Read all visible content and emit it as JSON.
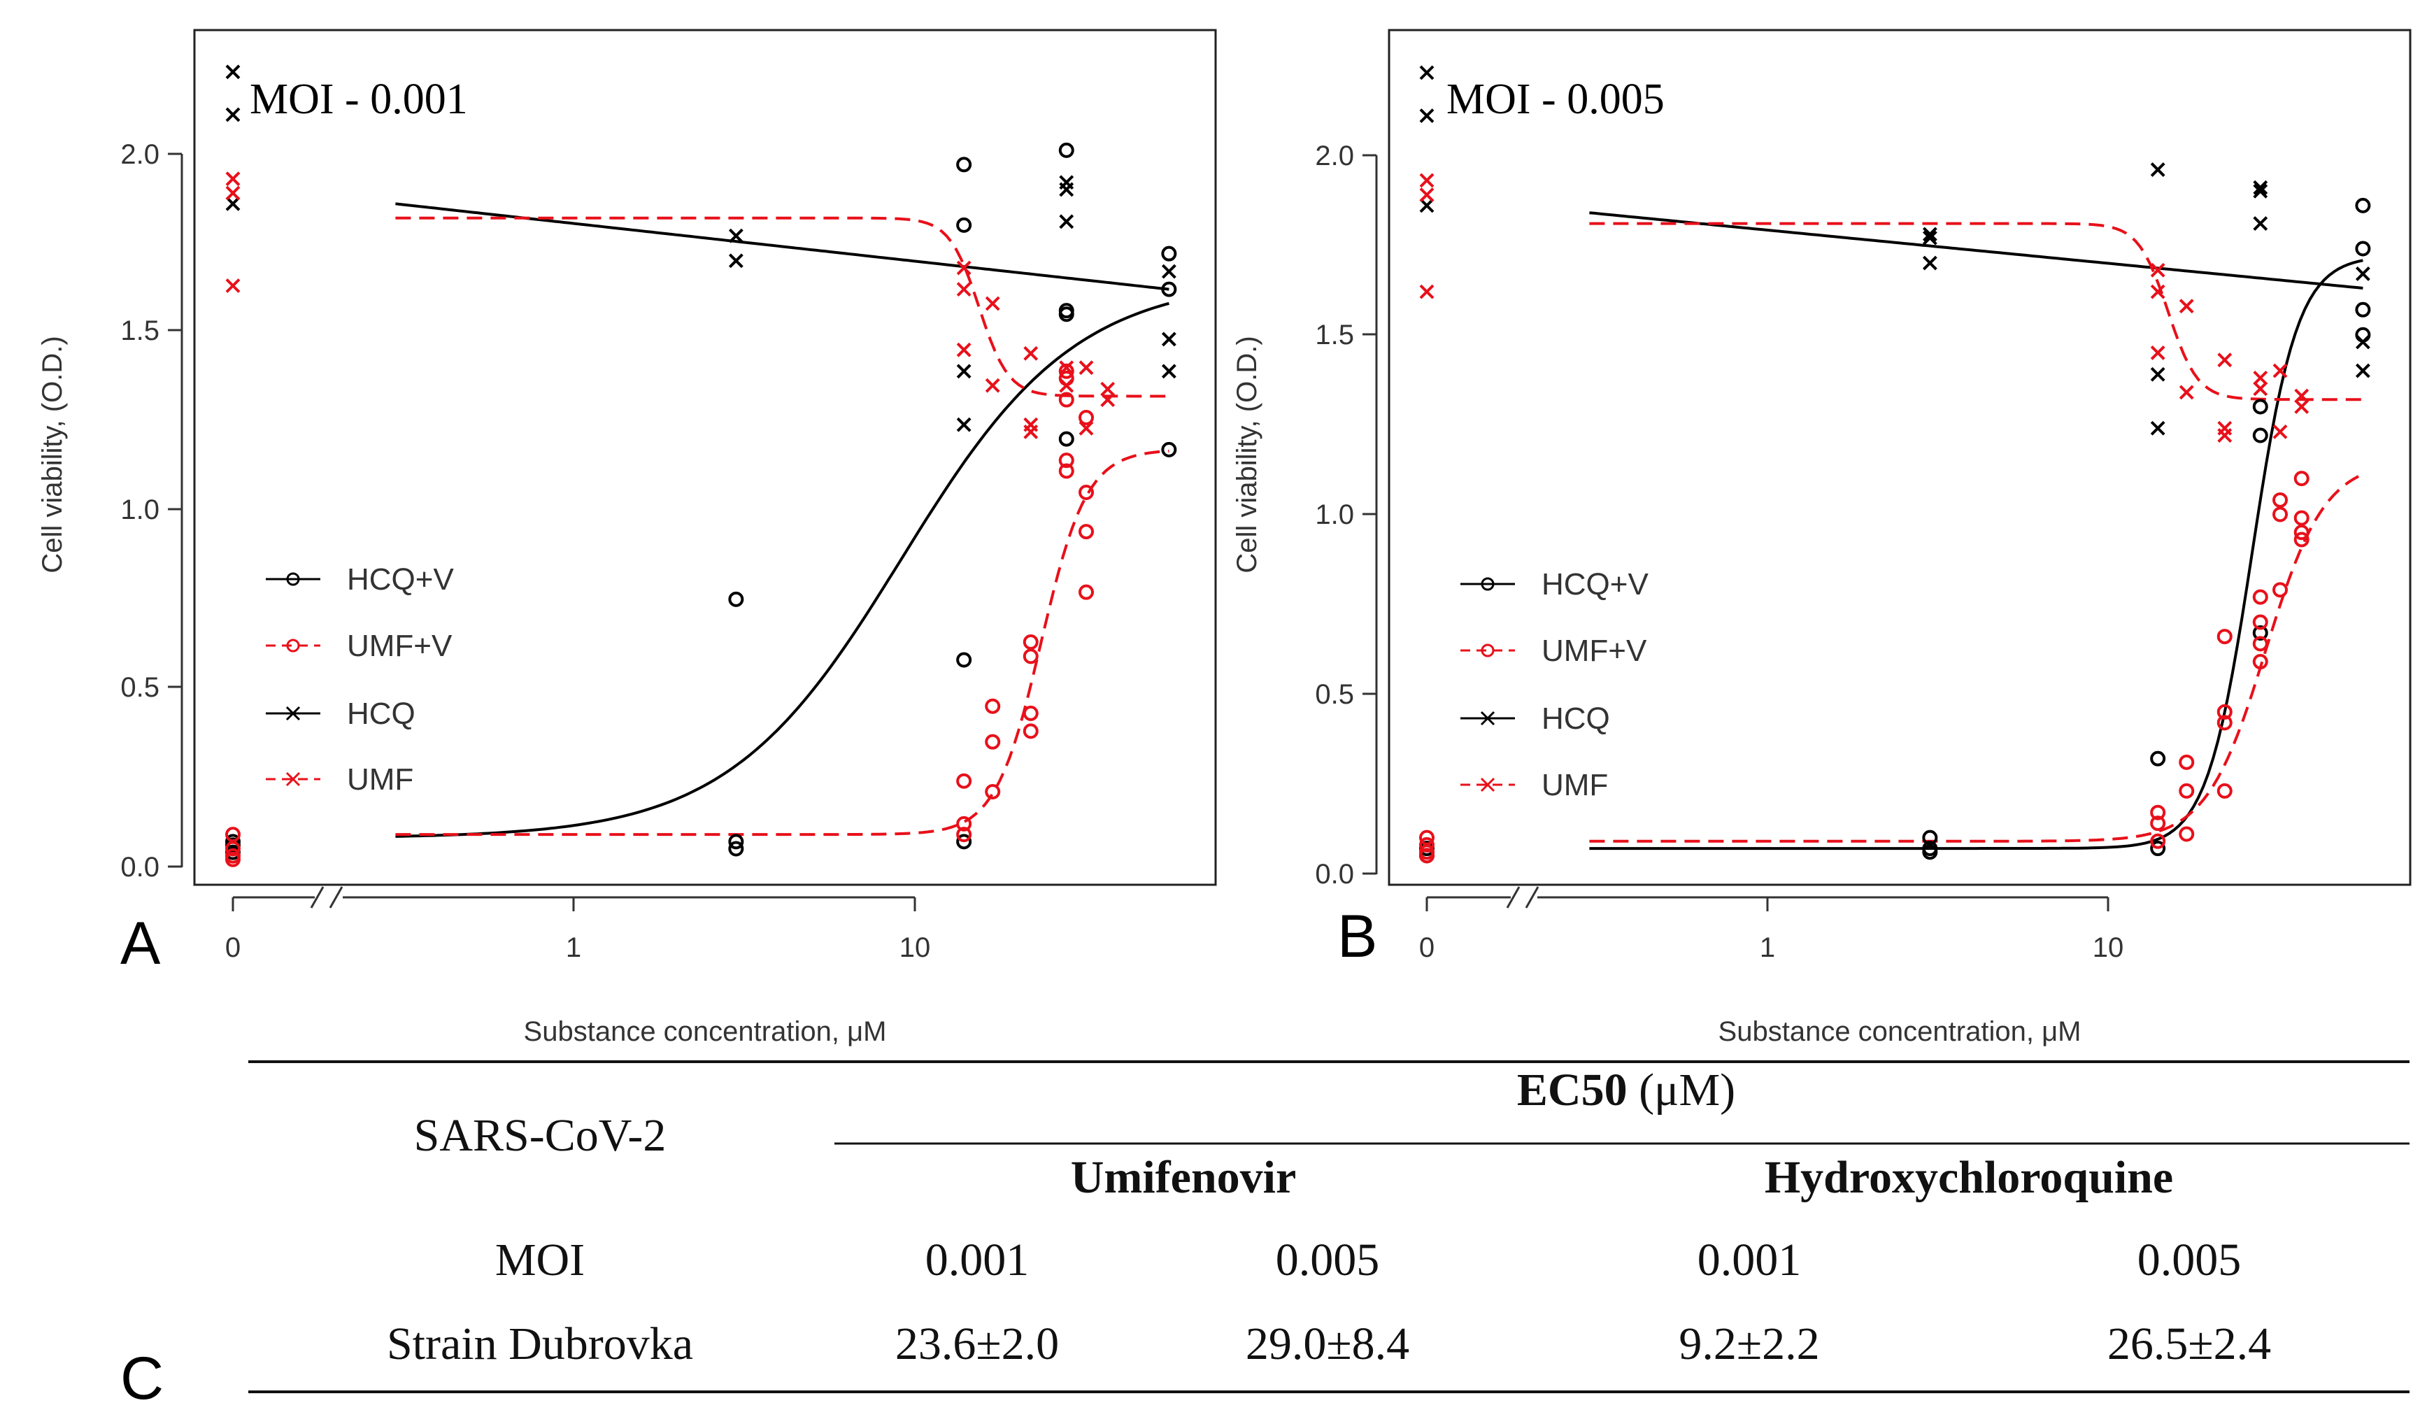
{
  "chart_data": [
    {
      "type": "scatter",
      "panel": "A",
      "title": "MOI - 0.001",
      "xlabel": "Substance concentration, μM",
      "ylabel": "Cell viability, (O.D.)",
      "x_scale": "log with broken axis at 0",
      "xticks": [
        "0",
        "1",
        "10"
      ],
      "yticks": [
        "0.0",
        "0.5",
        "1.0",
        "1.5",
        "2.0"
      ],
      "ylim": [
        -0.05,
        2.3
      ],
      "legend": [
        {
          "label": "HCQ+V",
          "marker": "circle",
          "line": "solid",
          "color": "#000000"
        },
        {
          "label": "UMF+V",
          "marker": "circle",
          "line": "dashed",
          "color": "#e8101a"
        },
        {
          "label": "HCQ",
          "marker": "x",
          "line": "solid",
          "color": "#000000"
        },
        {
          "label": "UMF",
          "marker": "x",
          "line": "dashed",
          "color": "#e8101a"
        }
      ],
      "series": [
        {
          "name": "HCQ+V",
          "points": [
            [
              0,
              0.04
            ],
            [
              0,
              0.06
            ],
            [
              0,
              0.07
            ],
            [
              3,
              0.75
            ],
            [
              3,
              0.07
            ],
            [
              3,
              0.05
            ],
            [
              14,
              1.97
            ],
            [
              14,
              1.8
            ],
            [
              14,
              0.58
            ],
            [
              14,
              0.07
            ],
            [
              28,
              2.01
            ],
            [
              28,
              1.56
            ],
            [
              28,
              1.55
            ],
            [
              28,
              1.2
            ],
            [
              56,
              1.72
            ],
            [
              56,
              1.62
            ],
            [
              56,
              1.17
            ]
          ]
        },
        {
          "name": "UMF+V",
          "points": [
            [
              0,
              0.09
            ],
            [
              0,
              0.05
            ],
            [
              0,
              0.03
            ],
            [
              0,
              0.02
            ],
            [
              14,
              0.24
            ],
            [
              14,
              0.12
            ],
            [
              14,
              0.09
            ],
            [
              17,
              0.45
            ],
            [
              17,
              0.35
            ],
            [
              17,
              0.21
            ],
            [
              22,
              0.63
            ],
            [
              22,
              0.59
            ],
            [
              22,
              0.43
            ],
            [
              22,
              0.38
            ],
            [
              28,
              1.39
            ],
            [
              28,
              1.37
            ],
            [
              28,
              1.31
            ],
            [
              28,
              1.14
            ],
            [
              28,
              1.11
            ],
            [
              32,
              1.26
            ],
            [
              32,
              1.05
            ],
            [
              32,
              0.94
            ],
            [
              32,
              0.77
            ]
          ]
        },
        {
          "name": "HCQ",
          "points": [
            [
              0,
              2.23
            ],
            [
              0,
              2.11
            ],
            [
              0,
              1.86
            ],
            [
              3,
              1.77
            ],
            [
              3,
              1.7
            ],
            [
              14,
              1.39
            ],
            [
              14,
              1.24
            ],
            [
              28,
              1.92
            ],
            [
              28,
              1.9
            ],
            [
              28,
              1.81
            ],
            [
              56,
              1.67
            ],
            [
              56,
              1.48
            ],
            [
              56,
              1.39
            ]
          ]
        },
        {
          "name": "UMF",
          "points": [
            [
              0,
              1.93
            ],
            [
              0,
              1.89
            ],
            [
              0,
              1.63
            ],
            [
              14,
              1.68
            ],
            [
              14,
              1.62
            ],
            [
              14,
              1.45
            ],
            [
              17,
              1.58
            ],
            [
              17,
              1.35
            ],
            [
              22,
              1.44
            ],
            [
              22,
              1.24
            ],
            [
              22,
              1.22
            ],
            [
              28,
              1.4
            ],
            [
              28,
              1.35
            ],
            [
              32,
              1.4
            ],
            [
              32,
              1.23
            ],
            [
              37,
              1.34
            ],
            [
              37,
              1.31
            ]
          ]
        }
      ],
      "fits": [
        {
          "name": "HCQ+V",
          "type": "sigmoid",
          "bottom": 0.08,
          "top": 1.65,
          "ec50": 9.2,
          "hill": 1.7
        },
        {
          "name": "UMF+V",
          "type": "sigmoid",
          "bottom": 0.09,
          "top": 1.17,
          "ec50": 23.6,
          "hill": 6.5
        },
        {
          "name": "HCQ",
          "type": "log-linear",
          "at_0_3": 1.86,
          "at_56": 1.62
        },
        {
          "name": "UMF",
          "type": "decreasing-sigmoid",
          "bottom": 1.32,
          "top": 1.82,
          "ec50": 15.5,
          "hill": 10
        }
      ]
    },
    {
      "type": "scatter",
      "panel": "B",
      "title": "MOI - 0.005",
      "xlabel": "Substance concentration, μM",
      "ylabel": "Cell viability, (O.D.)",
      "x_scale": "log with broken axis at 0",
      "xticks": [
        "0",
        "1",
        "10"
      ],
      "yticks": [
        "0.0",
        "0.5",
        "1.0",
        "1.5",
        "2.0"
      ],
      "ylim": [
        -0.05,
        2.3
      ],
      "legend": [
        {
          "label": "HCQ+V",
          "marker": "circle",
          "line": "solid",
          "color": "#000000"
        },
        {
          "label": "UMF+V",
          "marker": "circle",
          "line": "dashed",
          "color": "#e8101a"
        },
        {
          "label": "HCQ",
          "marker": "x",
          "line": "solid",
          "color": "#000000"
        },
        {
          "label": "UMF",
          "marker": "x",
          "line": "dashed",
          "color": "#e8101a"
        }
      ],
      "series": [
        {
          "name": "HCQ+V",
          "points": [
            [
              0,
              0.05
            ],
            [
              0,
              0.07
            ],
            [
              3,
              0.1
            ],
            [
              3,
              0.07
            ],
            [
              3,
              0.06
            ],
            [
              14,
              0.32
            ],
            [
              14,
              0.07
            ],
            [
              28,
              1.3
            ],
            [
              28,
              1.22
            ],
            [
              28,
              0.67
            ],
            [
              56,
              1.86
            ],
            [
              56,
              1.74
            ],
            [
              56,
              1.57
            ],
            [
              56,
              1.5
            ]
          ]
        },
        {
          "name": "UMF+V",
          "points": [
            [
              0,
              0.1
            ],
            [
              0,
              0.08
            ],
            [
              0,
              0.06
            ],
            [
              0,
              0.05
            ],
            [
              14,
              0.17
            ],
            [
              14,
              0.14
            ],
            [
              14,
              0.09
            ],
            [
              17,
              0.31
            ],
            [
              17,
              0.23
            ],
            [
              17,
              0.11
            ],
            [
              22,
              0.66
            ],
            [
              22,
              0.45
            ],
            [
              22,
              0.42
            ],
            [
              22,
              0.23
            ],
            [
              28,
              0.77
            ],
            [
              28,
              0.7
            ],
            [
              28,
              0.64
            ],
            [
              28,
              0.59
            ],
            [
              32,
              1.04
            ],
            [
              32,
              1.0
            ],
            [
              32,
              0.79
            ],
            [
              37,
              1.1
            ],
            [
              37,
              0.99
            ],
            [
              37,
              0.95
            ],
            [
              37,
              0.93
            ]
          ]
        },
        {
          "name": "HCQ",
          "points": [
            [
              0,
              2.23
            ],
            [
              0,
              2.11
            ],
            [
              0,
              1.86
            ],
            [
              3,
              1.78
            ],
            [
              3,
              1.77
            ],
            [
              3,
              1.7
            ],
            [
              14,
              1.96
            ],
            [
              14,
              1.39
            ],
            [
              14,
              1.24
            ],
            [
              28,
              1.91
            ],
            [
              28,
              1.9
            ],
            [
              28,
              1.81
            ],
            [
              56,
              1.67
            ],
            [
              56,
              1.48
            ],
            [
              56,
              1.4
            ]
          ]
        },
        {
          "name": "UMF",
          "points": [
            [
              0,
              1.93
            ],
            [
              0,
              1.89
            ],
            [
              0,
              1.62
            ],
            [
              14,
              1.68
            ],
            [
              14,
              1.62
            ],
            [
              14,
              1.45
            ],
            [
              17,
              1.58
            ],
            [
              17,
              1.34
            ],
            [
              22,
              1.43
            ],
            [
              22,
              1.24
            ],
            [
              22,
              1.22
            ],
            [
              28,
              1.38
            ],
            [
              28,
              1.35
            ],
            [
              32,
              1.4
            ],
            [
              32,
              1.23
            ],
            [
              37,
              1.33
            ],
            [
              37,
              1.3
            ]
          ]
        }
      ],
      "fits": [
        {
          "name": "HCQ+V",
          "type": "sigmoid",
          "bottom": 0.07,
          "top": 1.72,
          "ec50": 26.5,
          "hill": 6.5
        },
        {
          "name": "UMF+V",
          "type": "sigmoid",
          "bottom": 0.09,
          "top": 1.15,
          "ec50": 29.0,
          "hill": 5.0
        },
        {
          "name": "HCQ",
          "type": "log-linear",
          "at_0_3": 1.84,
          "at_56": 1.63
        },
        {
          "name": "UMF",
          "type": "decreasing-sigmoid",
          "bottom": 1.32,
          "top": 1.81,
          "ec50": 15.0,
          "hill": 10
        }
      ]
    }
  ],
  "panel_letters": {
    "a": "A",
    "b": "B",
    "c": "C"
  },
  "table": {
    "row_header": "SARS-CoV-2",
    "group_header_bold": "EC50",
    "group_header_unit": " (μM)",
    "drugs": [
      "Umifenovir",
      "Hydroxychloroquine"
    ],
    "moi_label": "MOI",
    "moi_values": [
      "0.001",
      "0.005",
      "0.001",
      "0.005"
    ],
    "strain_label": "Strain Dubrovka",
    "strain_values": [
      "23.6±2.0",
      "29.0±8.4",
      "9.2±2.2",
      "26.5±2.4"
    ]
  }
}
